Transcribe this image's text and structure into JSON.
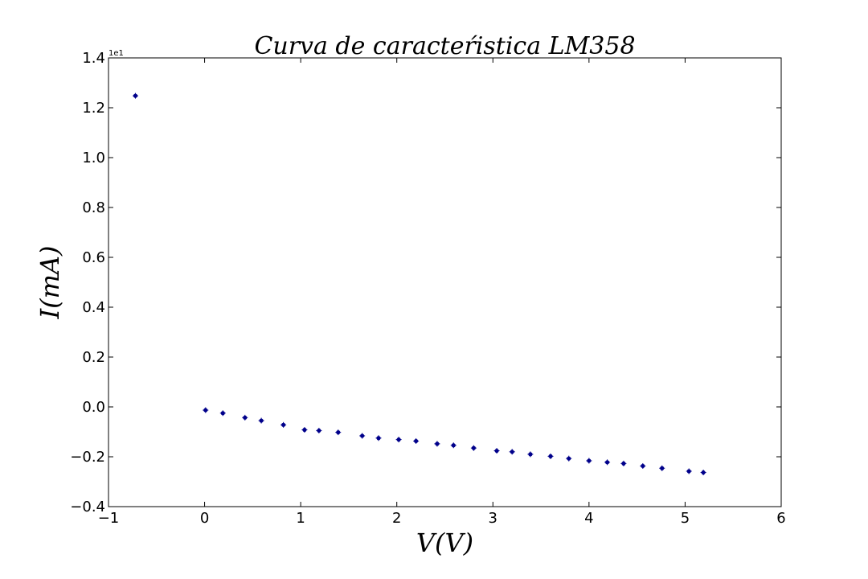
{
  "chart_data": {
    "type": "scatter",
    "title": "Curva de caracteŕistica LM358",
    "xlabel": "V(V)",
    "ylabel": "I(mA)",
    "y_offset_label": "1e1",
    "xlim": [
      -1,
      6
    ],
    "ylim": [
      -0.4,
      1.4
    ],
    "x_ticks": [
      -1,
      0,
      1,
      2,
      3,
      4,
      5,
      6
    ],
    "x_tick_labels": [
      "−1",
      "0",
      "1",
      "2",
      "3",
      "4",
      "5",
      "6"
    ],
    "y_ticks": [
      -0.4,
      -0.2,
      0.0,
      0.2,
      0.4,
      0.6,
      0.8,
      1.0,
      1.2,
      1.4
    ],
    "y_tick_labels": [
      "−0.4",
      "−0.2",
      "0.0",
      "0.2",
      "0.4",
      "0.6",
      "0.8",
      "1.0",
      "1.2",
      "1.4"
    ],
    "grid": false,
    "marker_color": "#00008b",
    "x": [
      -0.72,
      0.01,
      0.19,
      0.42,
      0.59,
      0.82,
      1.04,
      1.19,
      1.39,
      1.64,
      1.81,
      2.02,
      2.2,
      2.42,
      2.59,
      2.8,
      3.04,
      3.2,
      3.39,
      3.6,
      3.79,
      4.0,
      4.19,
      4.36,
      4.56,
      4.76,
      5.04,
      5.19
    ],
    "y": [
      1.248,
      -0.013,
      -0.025,
      -0.043,
      -0.055,
      -0.072,
      -0.092,
      -0.095,
      -0.102,
      -0.116,
      -0.125,
      -0.131,
      -0.137,
      -0.148,
      -0.154,
      -0.165,
      -0.176,
      -0.18,
      -0.19,
      -0.198,
      -0.207,
      -0.216,
      -0.222,
      -0.227,
      -0.237,
      -0.246,
      -0.258,
      -0.263
    ]
  }
}
